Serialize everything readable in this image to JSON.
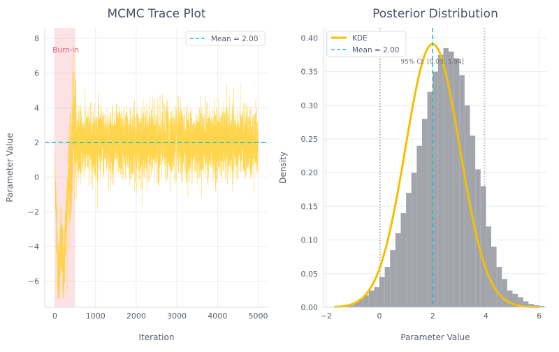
{
  "chart_data": [
    {
      "type": "line",
      "title": "MCMC Trace Plot",
      "xlabel": "Iteration",
      "ylabel": "Parameter Value",
      "xlim": [
        -250,
        5250
      ],
      "ylim": [
        -7.5,
        8.6
      ],
      "xticks": [
        0,
        1000,
        2000,
        3000,
        4000,
        5000
      ],
      "yticks": [
        -6,
        -4,
        -2,
        0,
        2,
        4,
        6,
        8
      ],
      "xtick_labels": [
        "0",
        "1000",
        "2000",
        "3000",
        "4000",
        "5000"
      ],
      "ytick_labels": [
        "−6",
        "−4",
        "−2",
        "0",
        "2",
        "4",
        "6",
        "8"
      ],
      "grid": true,
      "burn_in": {
        "start": 0,
        "end": 500,
        "label": "Burn-in",
        "color": "#f4a0a8"
      },
      "mean_line": {
        "value": 2.0,
        "label": "Mean = 2.00",
        "color": "#19c3c8"
      },
      "series_color": "#ffd03a",
      "samples": {
        "count": 5000,
        "steady_mean": 2.0,
        "steady_sd": 0.95,
        "burn_start": 0.5,
        "burn_min": -6.7,
        "burn_peak": 7.6
      },
      "legend_position": "top-right"
    },
    {
      "type": "bar",
      "title": "Posterior Distribution",
      "xlabel": "Parameter Value",
      "ylabel": "Density",
      "xlim": [
        -2.1,
        6.3
      ],
      "ylim": [
        0,
        0.415
      ],
      "xticks": [
        -2,
        0,
        2,
        4,
        6
      ],
      "yticks": [
        0.0,
        0.05,
        0.1,
        0.15,
        0.2,
        0.25,
        0.3,
        0.35,
        0.4
      ],
      "xtick_labels": [
        "−2",
        "0",
        "2",
        "4",
        "6"
      ],
      "ytick_labels": [
        "0.00",
        "0.05",
        "0.10",
        "0.15",
        "0.20",
        "0.25",
        "0.30",
        "0.35",
        "0.40"
      ],
      "grid": true,
      "histogram": {
        "bin_width": 0.2,
        "bin_start": -1.4,
        "densities": [
          0.002,
          0.003,
          0.007,
          0.012,
          0.018,
          0.025,
          0.03,
          0.045,
          0.06,
          0.085,
          0.11,
          0.14,
          0.17,
          0.2,
          0.24,
          0.28,
          0.32,
          0.35,
          0.375,
          0.385,
          0.38,
          0.37,
          0.345,
          0.3,
          0.255,
          0.205,
          0.18,
          0.12,
          0.09,
          0.06,
          0.042,
          0.025,
          0.02,
          0.015,
          0.009,
          0.005,
          0.003,
          0.002
        ],
        "color": "#a2a6ac"
      },
      "kde": {
        "label": "KDE",
        "mean": 2.0,
        "sd": 1.02,
        "x_range": [
          -1.7,
          6.0
        ],
        "color": "#f5bf00"
      },
      "mean_line": {
        "value": 2.0,
        "label": "Mean = 2.00",
        "color": "#19c3c8"
      },
      "ci": {
        "low": 0.03,
        "high": 3.94,
        "label": "95% CI: [0.03, 3.94]",
        "color": "#999999"
      },
      "legend_position": "top-left"
    }
  ]
}
